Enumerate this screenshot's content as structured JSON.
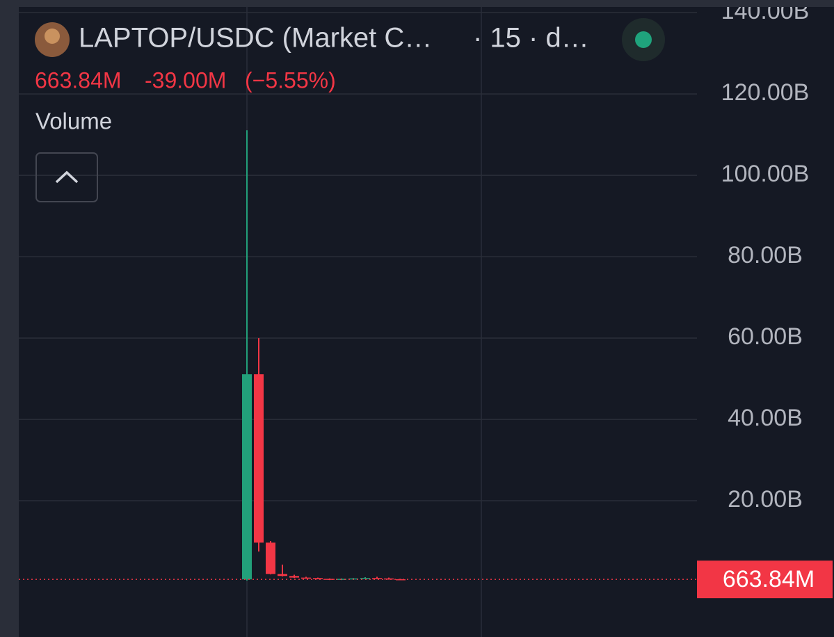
{
  "chart_data": {
    "type": "candlestick",
    "title": "LAPTOP/USDC (Market C…",
    "interval": "· 15 · d…",
    "change": "-39.00M",
    "change_pct": "(−5.55%)",
    "legend": "Volume",
    "up_color": "#22a07a",
    "down_color": "#f23645",
    "categories": [
      null,
      null,
      null,
      null,
      null,
      null,
      null,
      null,
      null,
      null,
      null,
      null,
      null,
      null
    ],
    "open": [
      0.66,
      51.1,
      9.7,
      2.0,
      1.5,
      1.1,
      1.0,
      0.8,
      0.6,
      0.8,
      0.9,
      1.0,
      0.9,
      0.7
    ],
    "high": [
      111.1,
      60.0,
      10.1,
      4.3,
      1.8,
      1.3,
      1.1,
      0.9,
      0.9,
      1.0,
      1.2,
      1.3,
      1.1,
      0.8
    ],
    "low": [
      0.4,
      7.5,
      1.9,
      1.4,
      1.0,
      0.9,
      0.7,
      0.5,
      0.5,
      0.7,
      0.8,
      0.8,
      0.6,
      0.6
    ],
    "close": [
      51.1,
      9.7,
      2.0,
      1.5,
      1.1,
      1.0,
      0.8,
      0.6,
      0.8,
      0.9,
      1.0,
      0.9,
      0.7,
      0.66
    ],
    "last_price": {
      "value": 0.66384,
      "label": "663.84M"
    },
    "ylim": [
      -13.5,
      141.4
    ],
    "yticks": [
      {
        "value": 20,
        "label": "20.00B"
      },
      {
        "value": 40,
        "label": "40.00B"
      },
      {
        "value": 60,
        "label": "60.00B"
      },
      {
        "value": 80,
        "label": "80.00B"
      },
      {
        "value": 100,
        "label": "100.00B"
      },
      {
        "value": 120,
        "label": "120.00B"
      },
      {
        "value": 140,
        "label": "140.00B"
      }
    ],
    "grid": true
  }
}
